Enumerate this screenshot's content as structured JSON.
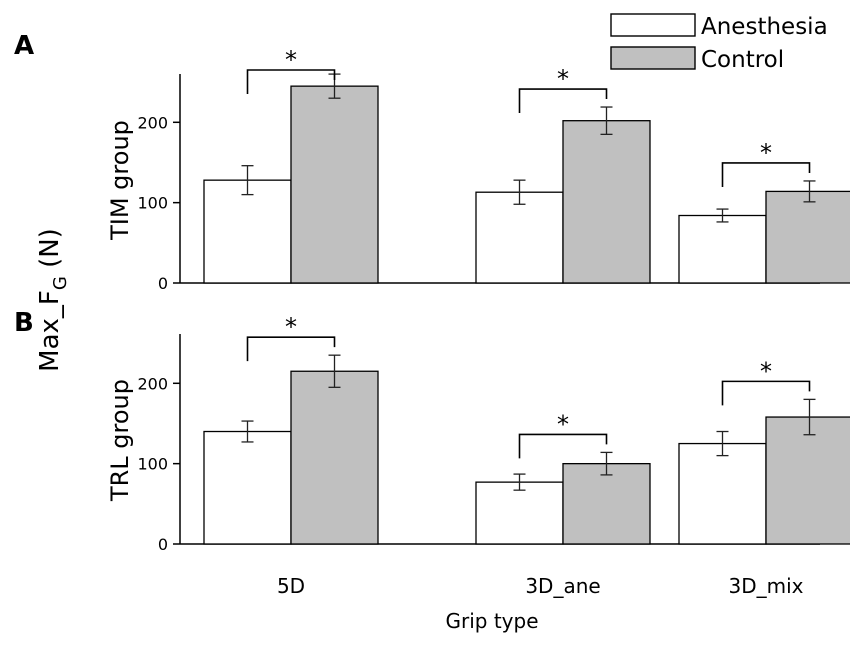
{
  "chart_data": [
    {
      "panel_label": "A",
      "type": "bar",
      "ylabel": "TIM group",
      "ylim": [
        0,
        260
      ],
      "yticks": [
        0,
        100,
        200
      ],
      "categories": [
        "5D",
        "3D_ane",
        "3D_mix"
      ],
      "series": [
        {
          "name": "Anesthesia",
          "color": "#ffffff",
          "values": [
            128,
            113,
            84
          ],
          "errors": [
            18,
            15,
            8
          ]
        },
        {
          "name": "Control",
          "color": "#c0c0c0",
          "values": [
            245,
            202,
            114
          ],
          "errors": [
            15,
            17,
            13
          ]
        }
      ],
      "significance": [
        "*",
        "*",
        "*"
      ]
    },
    {
      "panel_label": "B",
      "type": "bar",
      "ylabel": "TRL group",
      "ylim": [
        0,
        260
      ],
      "yticks": [
        0,
        100,
        200
      ],
      "categories": [
        "5D",
        "3D_ane",
        "3D_mix"
      ],
      "series": [
        {
          "name": "Anesthesia",
          "color": "#ffffff",
          "values": [
            140,
            77,
            125
          ],
          "errors": [
            13,
            10,
            15
          ]
        },
        {
          "name": "Control",
          "color": "#c0c0c0",
          "values": [
            215,
            100,
            158
          ],
          "errors": [
            20,
            14,
            22
          ]
        }
      ],
      "significance": [
        "*",
        "*",
        "*"
      ]
    }
  ],
  "shared_ylabel": {
    "prefix": "Max_F",
    "subscript": "G",
    "suffix": " (N)"
  },
  "xlabel": "Grip type",
  "legend": {
    "position": "top-right",
    "entries": [
      "Anesthesia",
      "Control"
    ]
  },
  "colors": {
    "anesthesia": "#ffffff",
    "control": "#c0c0c0",
    "axis": "#000000"
  }
}
